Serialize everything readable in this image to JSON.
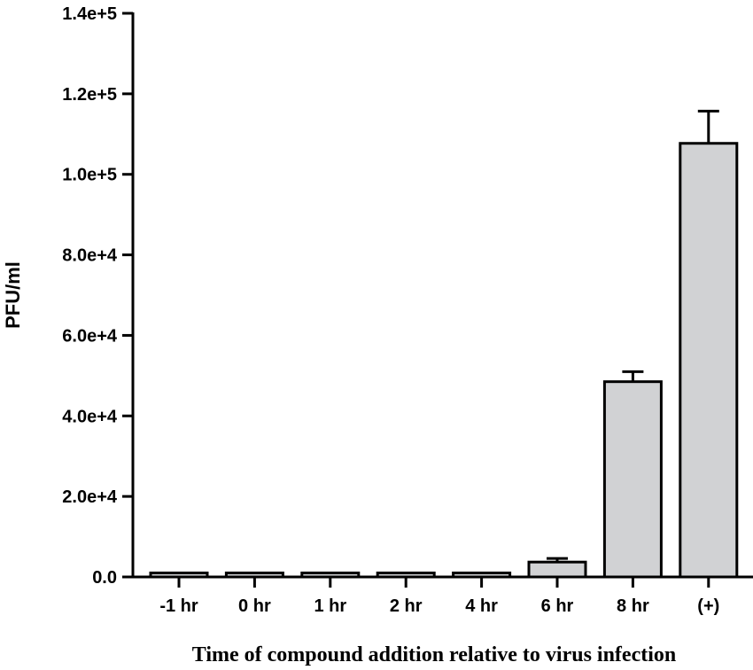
{
  "chart_data": {
    "type": "bar",
    "title": "",
    "xlabel": "Time of compound addition relative to virus infection",
    "ylabel": "PFU/ml",
    "categories": [
      "-1 hr",
      "0 hr",
      "1 hr",
      "2 hr",
      "4 hr",
      "6 hr",
      "8 hr",
      "(+)"
    ],
    "values": [
      1000,
      1000,
      1000,
      1000,
      1000,
      3700,
      48500,
      107700
    ],
    "error_upper": [
      0,
      0,
      0,
      0,
      0,
      900,
      2500,
      8000
    ],
    "ylim": [
      0,
      140000
    ],
    "yticks": [
      0,
      20000,
      40000,
      60000,
      80000,
      100000,
      120000,
      140000
    ],
    "ytick_labels": [
      "0.0",
      "2.0e+4",
      "4.0e+4",
      "6.0e+4",
      "8.0e+4",
      "1.0e+5",
      "1.2e+5",
      "1.4e+5"
    ],
    "grid": false,
    "bar_color": "#d1d2d4"
  }
}
